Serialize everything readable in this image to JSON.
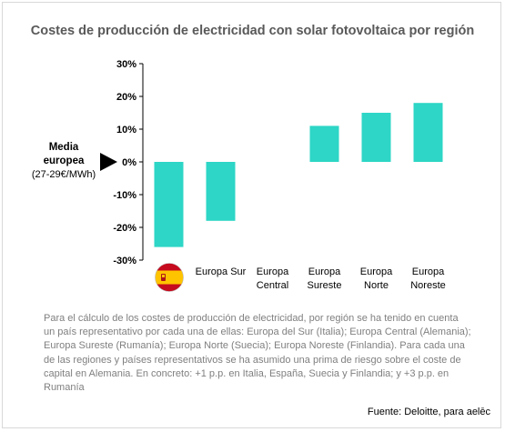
{
  "title": "Costes de producción de electricidad con solar fotovoltaica por región",
  "side_label": {
    "line1": "Media",
    "line2": "europea",
    "line3": "(27-29€/MWh)"
  },
  "note": "Para el cálculo de los costes de producción de electricidad, por región se ha tenido en cuenta un país representativo por cada una de ellas: Europa del Sur (Italia); Europa Central (Alemania); Europa Sureste (Rumanía); Europa Norte (Suecia); Europa Noreste (Finlandia). Para cada una de las regiones y países representativos se ha asumido una prima de riesgo sobre el coste de capital en  Alemania. En concreto: +1 p.p. en Italia, España, Suecia y Finlandia; y +3 p.p. en Rumanía",
  "source": "Fuente: Deloitte, para aelēc",
  "colors": {
    "bar": "#2dd6c6",
    "axis": "#000000",
    "note": "#7f7f7f"
  },
  "flag_icon": "spain-flag-icon",
  "chart_data": {
    "type": "bar",
    "categories": [
      "",
      "Europa Sur",
      "Europa Central",
      "Europa Sureste",
      "Europa Norte",
      "Europa Noreste"
    ],
    "category_lines": [
      [
        ""
      ],
      [
        "Europa Sur"
      ],
      [
        "Europa",
        "Central"
      ],
      [
        "Europa",
        "Sureste"
      ],
      [
        "Europa",
        "Norte"
      ],
      [
        "Europa",
        "Noreste"
      ]
    ],
    "values": [
      -26,
      -18,
      0,
      11,
      15,
      18
    ],
    "unit": "%",
    "ylim": [
      -30,
      30
    ],
    "yticks": [
      -30,
      -20,
      -10,
      0,
      10,
      20,
      30
    ],
    "ytick_labels": [
      "-30%",
      "-20%",
      "-10%",
      "0%",
      "10%",
      "20%",
      "30%"
    ],
    "grid": false,
    "legend": "none"
  }
}
